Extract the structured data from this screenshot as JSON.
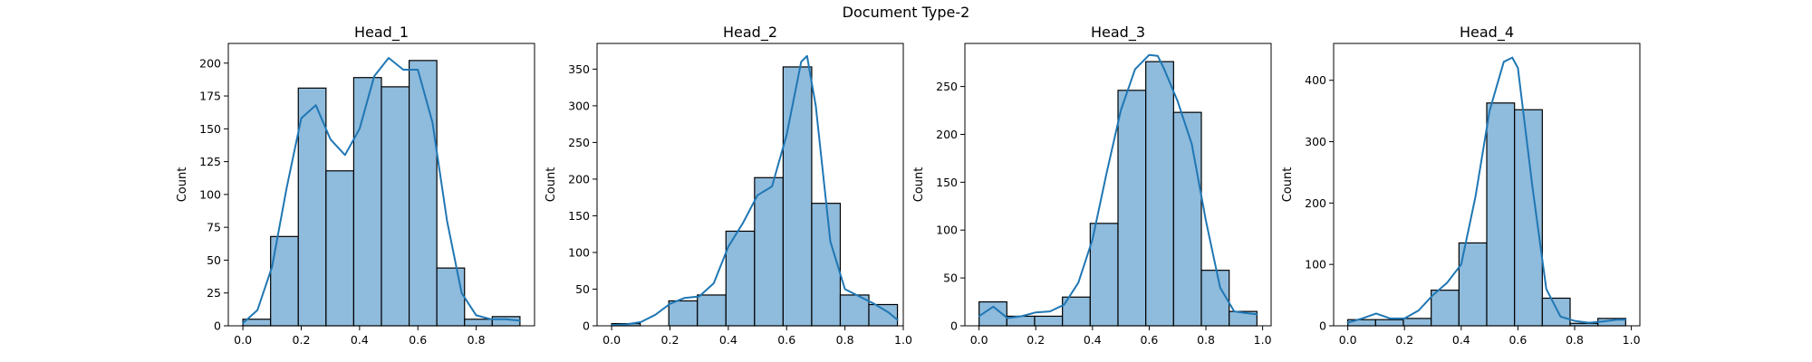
{
  "figure": {
    "title": "Document Type-2"
  },
  "colors": {
    "bar_fill": "#8fbbdc",
    "bar_edge": "#000000",
    "kde_line": "#1f77b4",
    "axis": "#000000"
  },
  "chart_data": [
    {
      "type": "bar",
      "title": "Head_1",
      "xlabel": "",
      "ylabel": "Count",
      "xlim": [
        -0.05,
        1.0
      ],
      "ylim": [
        0,
        215
      ],
      "xticks": [
        0.0,
        0.2,
        0.4,
        0.6,
        0.8
      ],
      "yticks": [
        0,
        25,
        50,
        75,
        100,
        125,
        150,
        175,
        200
      ],
      "bin_edges": [
        0.0,
        0.095,
        0.19,
        0.285,
        0.38,
        0.475,
        0.57,
        0.665,
        0.76,
        0.855,
        0.95
      ],
      "values": [
        5,
        68,
        181,
        118,
        189,
        182,
        202,
        44,
        5,
        7
      ],
      "kde": {
        "x": [
          0.0,
          0.05,
          0.1,
          0.15,
          0.2,
          0.25,
          0.3,
          0.35,
          0.4,
          0.45,
          0.5,
          0.55,
          0.6,
          0.65,
          0.7,
          0.75,
          0.8,
          0.85,
          0.9,
          0.95
        ],
        "y": [
          2,
          12,
          45,
          105,
          158,
          168,
          142,
          130,
          150,
          190,
          204,
          195,
          195,
          155,
          80,
          25,
          8,
          5,
          5,
          4
        ]
      },
      "grid": false,
      "legend": "none"
    },
    {
      "type": "bar",
      "title": "Head_2",
      "xlabel": "",
      "ylabel": "Count",
      "xlim": [
        -0.05,
        1.0
      ],
      "ylim": [
        0,
        385
      ],
      "xticks": [
        0.0,
        0.2,
        0.4,
        0.6,
        0.8,
        1.0
      ],
      "yticks": [
        0,
        50,
        100,
        150,
        200,
        250,
        300,
        350
      ],
      "bin_edges": [
        0.0,
        0.098,
        0.196,
        0.294,
        0.392,
        0.49,
        0.588,
        0.686,
        0.784,
        0.882,
        0.98
      ],
      "values": [
        3,
        0,
        34,
        42,
        129,
        202,
        353,
        167,
        42,
        29
      ],
      "kde": {
        "x": [
          0.0,
          0.05,
          0.1,
          0.15,
          0.2,
          0.25,
          0.3,
          0.35,
          0.4,
          0.45,
          0.5,
          0.55,
          0.6,
          0.65,
          0.67,
          0.7,
          0.75,
          0.8,
          0.85,
          0.9,
          0.95,
          0.98
        ],
        "y": [
          1,
          2,
          5,
          15,
          30,
          38,
          40,
          58,
          108,
          140,
          178,
          190,
          260,
          360,
          368,
          300,
          115,
          50,
          40,
          30,
          18,
          8
        ]
      },
      "grid": false,
      "legend": "none"
    },
    {
      "type": "bar",
      "title": "Head_3",
      "xlabel": "",
      "ylabel": "Count",
      "xlim": [
        -0.05,
        1.03
      ],
      "ylim": [
        0,
        295
      ],
      "xticks": [
        0.0,
        0.2,
        0.4,
        0.6,
        0.8,
        1.0
      ],
      "yticks": [
        0,
        50,
        100,
        150,
        200,
        250
      ],
      "bin_edges": [
        0.0,
        0.098,
        0.196,
        0.294,
        0.392,
        0.49,
        0.588,
        0.686,
        0.784,
        0.882,
        0.98
      ],
      "values": [
        25,
        10,
        10,
        30,
        107,
        246,
        276,
        223,
        58,
        15
      ],
      "kde": {
        "x": [
          0.0,
          0.05,
          0.1,
          0.15,
          0.2,
          0.25,
          0.3,
          0.35,
          0.4,
          0.45,
          0.5,
          0.55,
          0.6,
          0.63,
          0.65,
          0.7,
          0.75,
          0.8,
          0.85,
          0.9,
          0.95,
          0.98
        ],
        "y": [
          10,
          20,
          8,
          10,
          14,
          15,
          22,
          45,
          90,
          160,
          225,
          268,
          283,
          282,
          270,
          235,
          190,
          110,
          40,
          15,
          13,
          12
        ]
      },
      "grid": false,
      "legend": "none"
    },
    {
      "type": "bar",
      "title": "Head_4",
      "xlabel": "",
      "ylabel": "Count",
      "xlim": [
        -0.05,
        1.03
      ],
      "ylim": [
        0,
        460
      ],
      "xticks": [
        0.0,
        0.2,
        0.4,
        0.6,
        0.8,
        1.0
      ],
      "yticks": [
        0,
        100,
        200,
        300,
        400
      ],
      "bin_edges": [
        0.0,
        0.098,
        0.196,
        0.294,
        0.392,
        0.49,
        0.588,
        0.686,
        0.784,
        0.882,
        0.98
      ],
      "values": [
        10,
        10,
        12,
        58,
        135,
        363,
        352,
        45,
        4,
        12
      ],
      "kde": {
        "x": [
          0.0,
          0.05,
          0.1,
          0.15,
          0.2,
          0.25,
          0.3,
          0.35,
          0.4,
          0.45,
          0.5,
          0.55,
          0.58,
          0.6,
          0.65,
          0.7,
          0.75,
          0.8,
          0.85,
          0.9,
          0.95,
          0.98
        ],
        "y": [
          5,
          12,
          20,
          12,
          12,
          25,
          50,
          70,
          100,
          210,
          350,
          430,
          437,
          420,
          230,
          60,
          15,
          8,
          5,
          7,
          10,
          10
        ]
      },
      "grid": false,
      "legend": "none"
    }
  ]
}
